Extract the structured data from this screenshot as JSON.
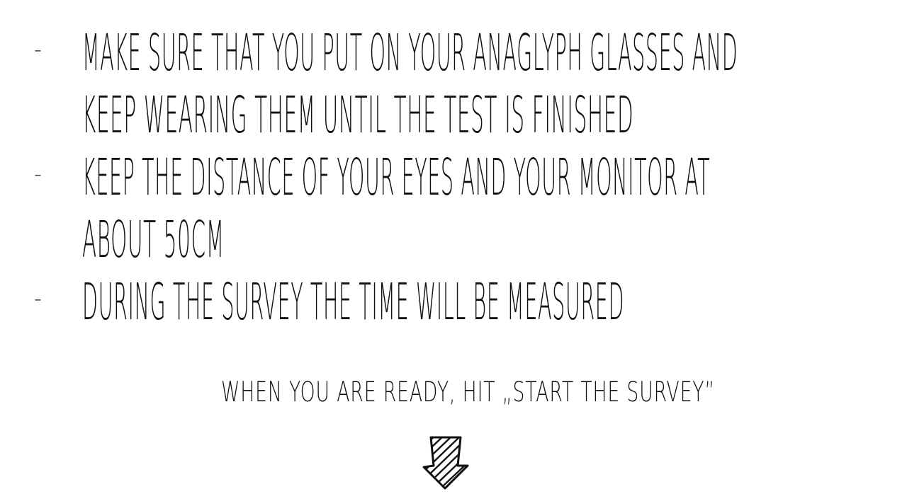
{
  "instructions": [
    {
      "dash": "-",
      "lines": [
        "Make sure that you put on your anaglyph glasses and",
        "keep wearing them until the test is finished"
      ]
    },
    {
      "dash": "-",
      "lines": [
        "Keep the distance of your eyes and your monitor at",
        "about 50cm"
      ]
    },
    {
      "dash": "-",
      "lines": [
        "During the survey the time will be measured"
      ]
    }
  ],
  "cta": {
    "text": "When you are ready, hit „Start the survey”"
  },
  "arrow": {
    "icon": "down-arrow-icon",
    "color": "#111111"
  }
}
